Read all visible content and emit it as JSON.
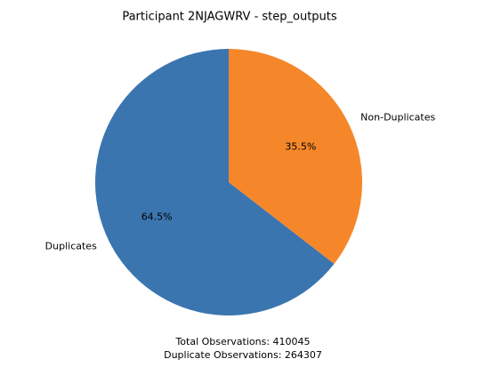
{
  "chart_data": {
    "type": "pie",
    "title": "Participant 2NJAGWRV - step_outputs",
    "categories": [
      "Duplicates",
      "Non-Duplicates"
    ],
    "values": [
      64.5,
      35.5
    ],
    "value_labels": [
      "64.5%",
      "35.5%"
    ],
    "colors": [
      "#3a75b0",
      "#f5872a"
    ],
    "start_angle": 90,
    "annotations": [
      "Total Observations: 410045",
      "Duplicate Observations: 264307"
    ]
  }
}
